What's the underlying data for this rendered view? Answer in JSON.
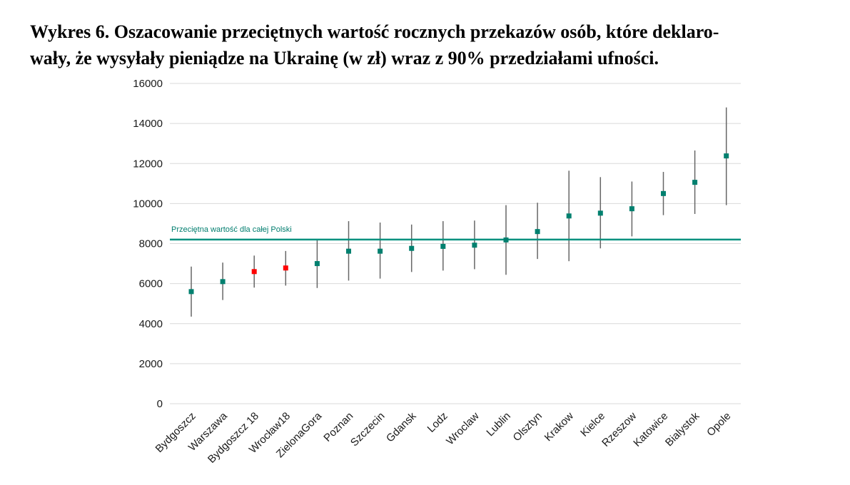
{
  "title_line1": "Wykres 6. Oszacowanie przeciętnych wartość rocznych przekazów osób, które deklaro-",
  "title_line2": "wały, że wysyłały pieniądze na Ukrainę (w zł) wraz z 90% przedziałami ufności.",
  "chart_data": {
    "type": "scatter",
    "title": "Wykres 6. Oszacowanie przeciętnych wartość rocznych przekazów osób, które deklarowały, że wysyłały pieniądze na Ukrainę (w zł) wraz z 90% przedziałami ufności.",
    "xlabel": "",
    "ylabel": "",
    "ylim": [
      0,
      16000
    ],
    "yticks": [
      0,
      2000,
      4000,
      6000,
      8000,
      10000,
      12000,
      14000,
      16000
    ],
    "grid": true,
    "categories": [
      "Bydgoszcz",
      "Warszawa",
      "Bydgoszcz 18",
      "Wrocław18",
      "ZielonaGora",
      "Poznan",
      "Szczecin",
      "Gdansk",
      "Lodz",
      "Wroclaw",
      "Lublin",
      "Olsztyn",
      "Krakow",
      "Kielce",
      "Rzeszow",
      "Katowice",
      "Bialystok",
      "Opole"
    ],
    "values": [
      5600,
      6100,
      6600,
      6780,
      7000,
      7620,
      7620,
      7760,
      7860,
      7920,
      8180,
      8600,
      9380,
      9520,
      9740,
      10500,
      11060,
      12380
    ],
    "ci_low": [
      4350,
      5180,
      5800,
      5900,
      5780,
      6150,
      6250,
      6580,
      6650,
      6720,
      6440,
      7230,
      7120,
      7760,
      8360,
      9420,
      9480,
      9920
    ],
    "ci_high": [
      6850,
      7050,
      7400,
      7630,
      8200,
      9120,
      9050,
      8950,
      9120,
      9150,
      9920,
      10040,
      11640,
      11320,
      11100,
      11580,
      12650,
      14800
    ],
    "colors": [
      "#00806f",
      "#00806f",
      "#ff0000",
      "#ff0000",
      "#00806f",
      "#00806f",
      "#00806f",
      "#00806f",
      "#00806f",
      "#00806f",
      "#00806f",
      "#00806f",
      "#00806f",
      "#00806f",
      "#00806f",
      "#00806f",
      "#00806f",
      "#00806f"
    ],
    "average": {
      "value": 8200,
      "label": "Przeciętna wartość  dla całej Polski",
      "color": "#00917f"
    },
    "error_bar_color": "#666666",
    "grid_color": "#d9d9d9"
  }
}
